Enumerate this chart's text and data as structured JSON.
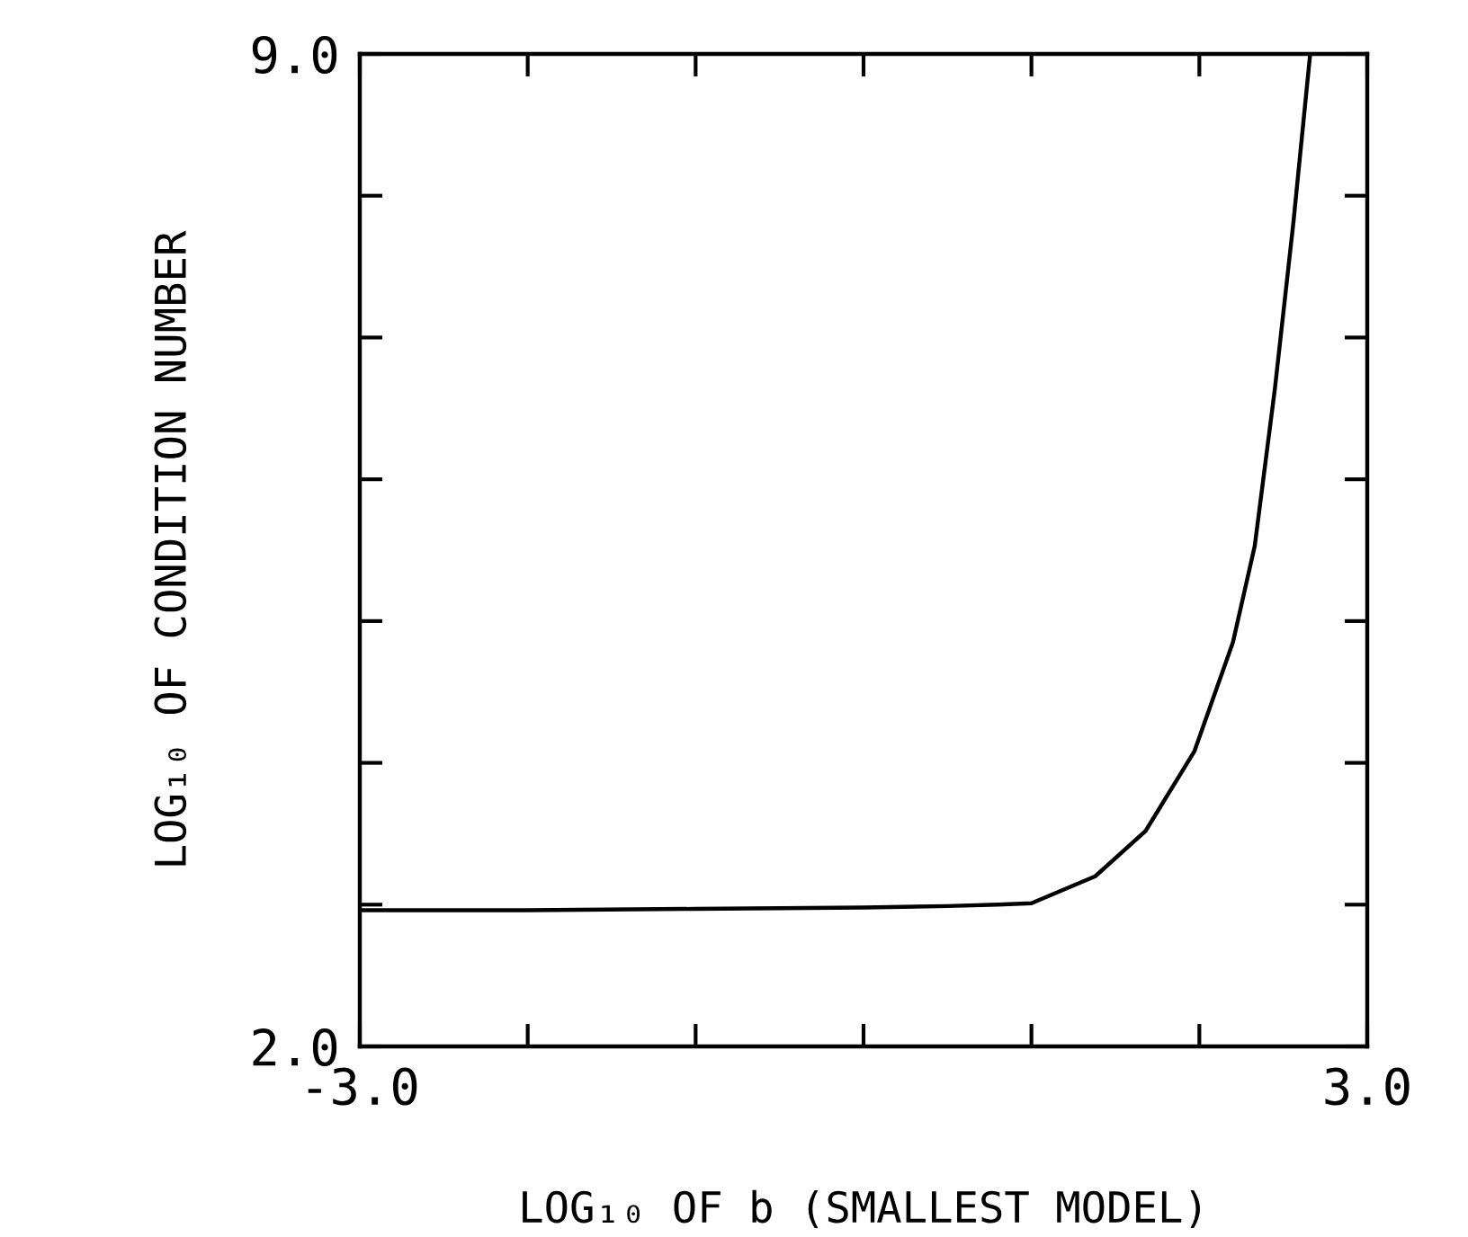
{
  "chart_data": {
    "type": "line",
    "xlabel": "LOG₁₀ OF b (SMALLEST MODEL)",
    "ylabel": "LOG₁₀ OF CONDITION NUMBER",
    "series": [
      {
        "color": "#000000",
        "x": [
          -3.0,
          -2.0,
          -1.0,
          0.0,
          0.5,
          0.8,
          1.0,
          1.38,
          1.68,
          1.97,
          2.2,
          2.33,
          2.45,
          2.56,
          2.66
        ],
        "values": [
          2.96,
          2.96,
          2.97,
          2.98,
          2.99,
          3.0,
          3.01,
          3.2,
          3.52,
          4.08,
          4.85,
          5.53,
          6.64,
          7.81,
          9.0
        ]
      }
    ],
    "xlim": [
      -3.0,
      3.0
    ],
    "ylim": [
      2.0,
      9.0
    ],
    "xticks": [
      {
        "value": -3,
        "label": "-3.0"
      },
      {
        "value": -2,
        "label": null
      },
      {
        "value": -1,
        "label": null
      },
      {
        "value": 0,
        "label": null
      },
      {
        "value": 1,
        "label": null
      },
      {
        "value": 2,
        "label": null
      },
      {
        "value": 3,
        "label": "3.0"
      }
    ],
    "yticks": [
      {
        "value": 2,
        "label": "2.0"
      },
      {
        "value": 3,
        "label": null
      },
      {
        "value": 4,
        "label": null
      },
      {
        "value": 5,
        "label": null
      },
      {
        "value": 6,
        "label": null
      },
      {
        "value": 7,
        "label": null
      },
      {
        "value": 8,
        "label": null
      },
      {
        "value": 9,
        "label": "9.0"
      }
    ],
    "grid": false,
    "marker": "none",
    "line_style": "solid",
    "legend": false
  }
}
